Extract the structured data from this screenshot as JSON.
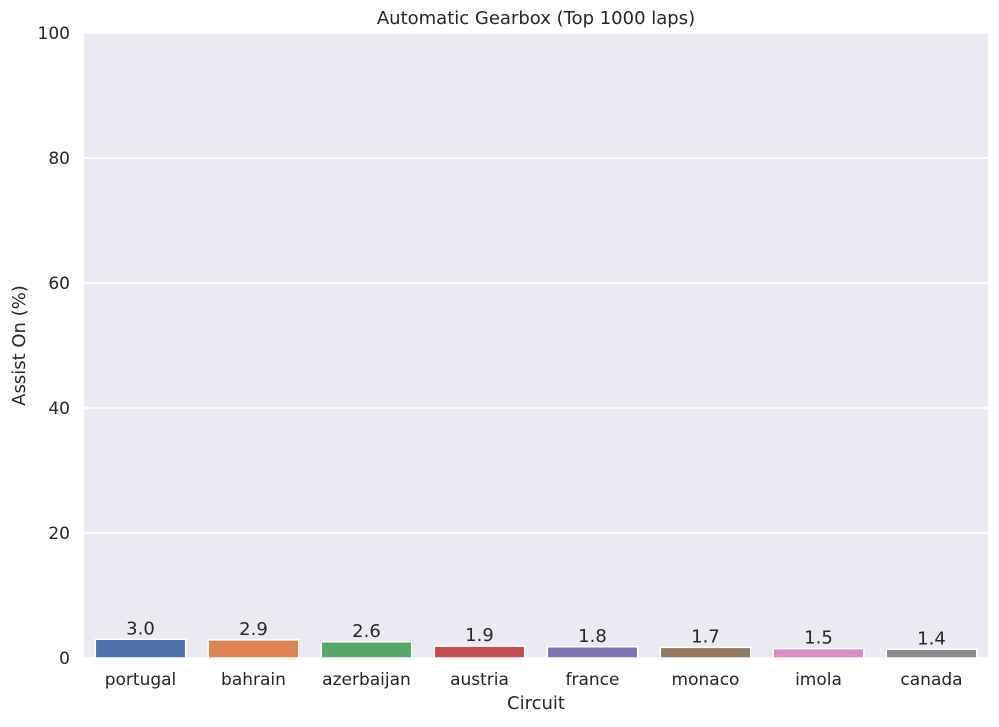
{
  "chart_data": {
    "type": "bar",
    "title": "Automatic Gearbox (Top 1000 laps)",
    "xlabel": "Circuit",
    "ylabel": "Assist On (%)",
    "categories": [
      "portugal",
      "bahrain",
      "azerbaijan",
      "austria",
      "france",
      "monaco",
      "imola",
      "canada"
    ],
    "values": [
      3.0,
      2.9,
      2.6,
      1.9,
      1.8,
      1.7,
      1.5,
      1.4
    ],
    "value_labels": [
      "3.0",
      "2.9",
      "2.6",
      "1.9",
      "1.8",
      "1.7",
      "1.5",
      "1.4"
    ],
    "colors": [
      "#4c72b0",
      "#dd8452",
      "#55a868",
      "#c44e52",
      "#8172b3",
      "#937860",
      "#da8bc3",
      "#8c8c8c"
    ],
    "ylim": [
      0,
      100
    ],
    "yticks": [
      0,
      20,
      40,
      60,
      80,
      100
    ],
    "ytick_labels": [
      "0",
      "20",
      "40",
      "60",
      "80",
      "100"
    ],
    "grid": true,
    "background_color": "#eaeaf2",
    "grid_color": "#ffffff"
  }
}
